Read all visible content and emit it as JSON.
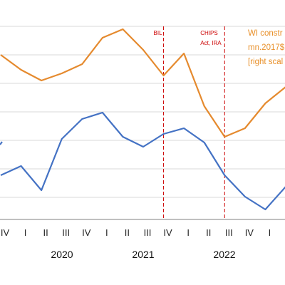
{
  "chart_data": {
    "type": "line",
    "x_labels": [
      "IV",
      "I",
      "II",
      "III",
      "IV",
      "I",
      "II",
      "III",
      "IV",
      "I",
      "II",
      "III",
      "IV",
      "I",
      "II"
    ],
    "years": [
      "2020",
      "2021",
      "2022"
    ],
    "series": [
      {
        "color": "#e58a2e",
        "values": [
          77,
          98,
          113,
          103,
          90,
          53,
          41,
          70,
          106,
          75,
          149,
          192,
          180,
          145,
          122
        ],
        "start_stub": null
      },
      {
        "color": "#4472c4",
        "values": [
          246,
          233,
          267,
          195,
          167,
          158,
          192,
          206,
          188,
          180,
          200,
          246,
          276,
          294,
          262
        ],
        "start_stub": 203
      }
    ],
    "y_invert_units": "pixel-free relative values",
    "vlines": [
      {
        "index": 8,
        "label_lines": [
          "BIL"
        ],
        "color": "#cc0000"
      },
      {
        "index": 11,
        "label_lines": [
          "CHIPS",
          "Act, IRA"
        ],
        "color": "#cc0000"
      }
    ],
    "annotation": {
      "lines": [
        "WI constr",
        "mn.2017$",
        "[right scal"
      ],
      "color": "#e8902a"
    },
    "grid": true
  }
}
